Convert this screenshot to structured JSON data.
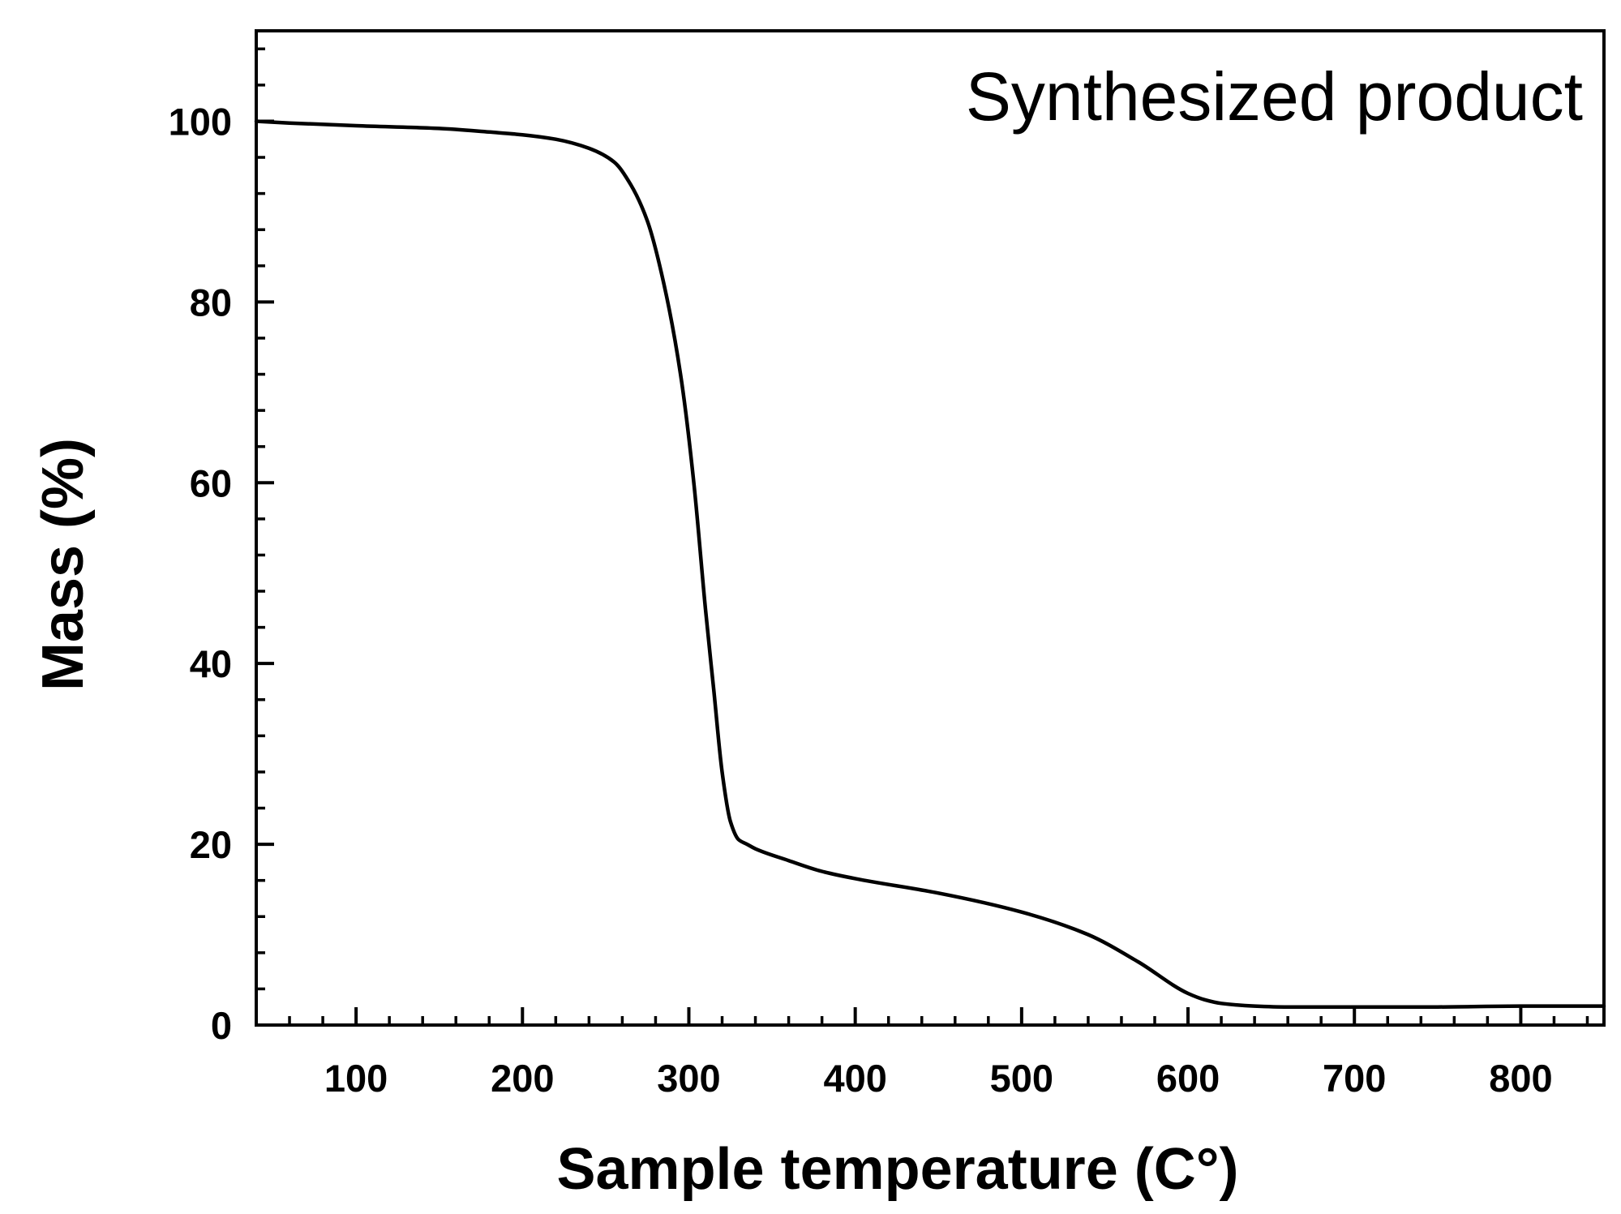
{
  "chart_data": {
    "type": "line",
    "annotation": "Synthesized product",
    "xlabel": "Sample temperature (C°)",
    "ylabel": "Mass (%)",
    "xlim": [
      40,
      850
    ],
    "ylim": [
      0,
      110
    ],
    "x_ticks": [
      100,
      200,
      300,
      400,
      500,
      600,
      700,
      800
    ],
    "y_ticks": [
      0,
      20,
      40,
      60,
      80,
      100
    ],
    "x_minor_step": 20,
    "y_minor_step": 4,
    "grid": false,
    "line_color": "#000000",
    "series": [
      {
        "x": [
          40,
          60,
          100,
          150,
          180,
          200,
          220,
          240,
          255,
          265,
          275,
          285,
          295,
          303,
          310,
          315,
          320,
          325,
          330,
          335,
          340,
          360,
          380,
          400,
          450,
          500,
          540,
          570,
          600,
          610,
          620,
          640,
          660,
          700,
          750,
          800,
          850
        ],
        "y": [
          100,
          99.8,
          99.5,
          99.2,
          98.8,
          98.5,
          98.0,
          97.0,
          95.5,
          93.0,
          89.0,
          82.0,
          72.0,
          60.0,
          46.0,
          37.0,
          28.0,
          22.5,
          20.5,
          20.0,
          19.5,
          18.2,
          17.0,
          16.2,
          14.6,
          12.5,
          10.0,
          7.0,
          3.5,
          2.8,
          2.4,
          2.1,
          2.0,
          2.0,
          2.0,
          2.1,
          2.1
        ]
      }
    ]
  }
}
